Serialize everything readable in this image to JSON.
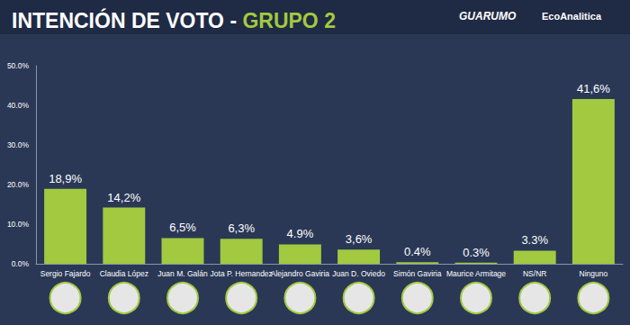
{
  "chart_data": {
    "type": "bar",
    "title": "INTENCIÓN DE VOTO - GRUPO 2",
    "annotations": [
      "GUARUMO",
      "EcoAnalitica"
    ],
    "categories": [
      "Sergio Fajardo",
      "Claudia López",
      "Juan M. Galán",
      "Jota P. Hernandez",
      "Alejandro Gaviria",
      "Juan D. Oviedo",
      "Simón Gaviria",
      "Maurice Armitage",
      "NS/NR",
      "Ninguno"
    ],
    "values": [
      18.9,
      14.2,
      6.5,
      6.3,
      4.9,
      3.6,
      0.4,
      0.3,
      3.3,
      41.6
    ],
    "value_labels": [
      "18,9%",
      "14,2%",
      "6,5%",
      "6,3%",
      "4.9%",
      "3,6%",
      "0.4%",
      "0.3%",
      "3.3%",
      "41,6%"
    ],
    "color": "#a2c940",
    "ylim": [
      0,
      50
    ],
    "yticks": [
      {
        "value": 0,
        "label": "0.0%"
      },
      {
        "value": 10,
        "label": "10.0%"
      },
      {
        "value": 20,
        "label": "20.0%"
      },
      {
        "value": 30,
        "label": "30.0%"
      },
      {
        "value": 40,
        "label": "40.0%"
      },
      {
        "value": 50,
        "label": "50.0%"
      }
    ],
    "grid": false,
    "data_labels": true
  }
}
